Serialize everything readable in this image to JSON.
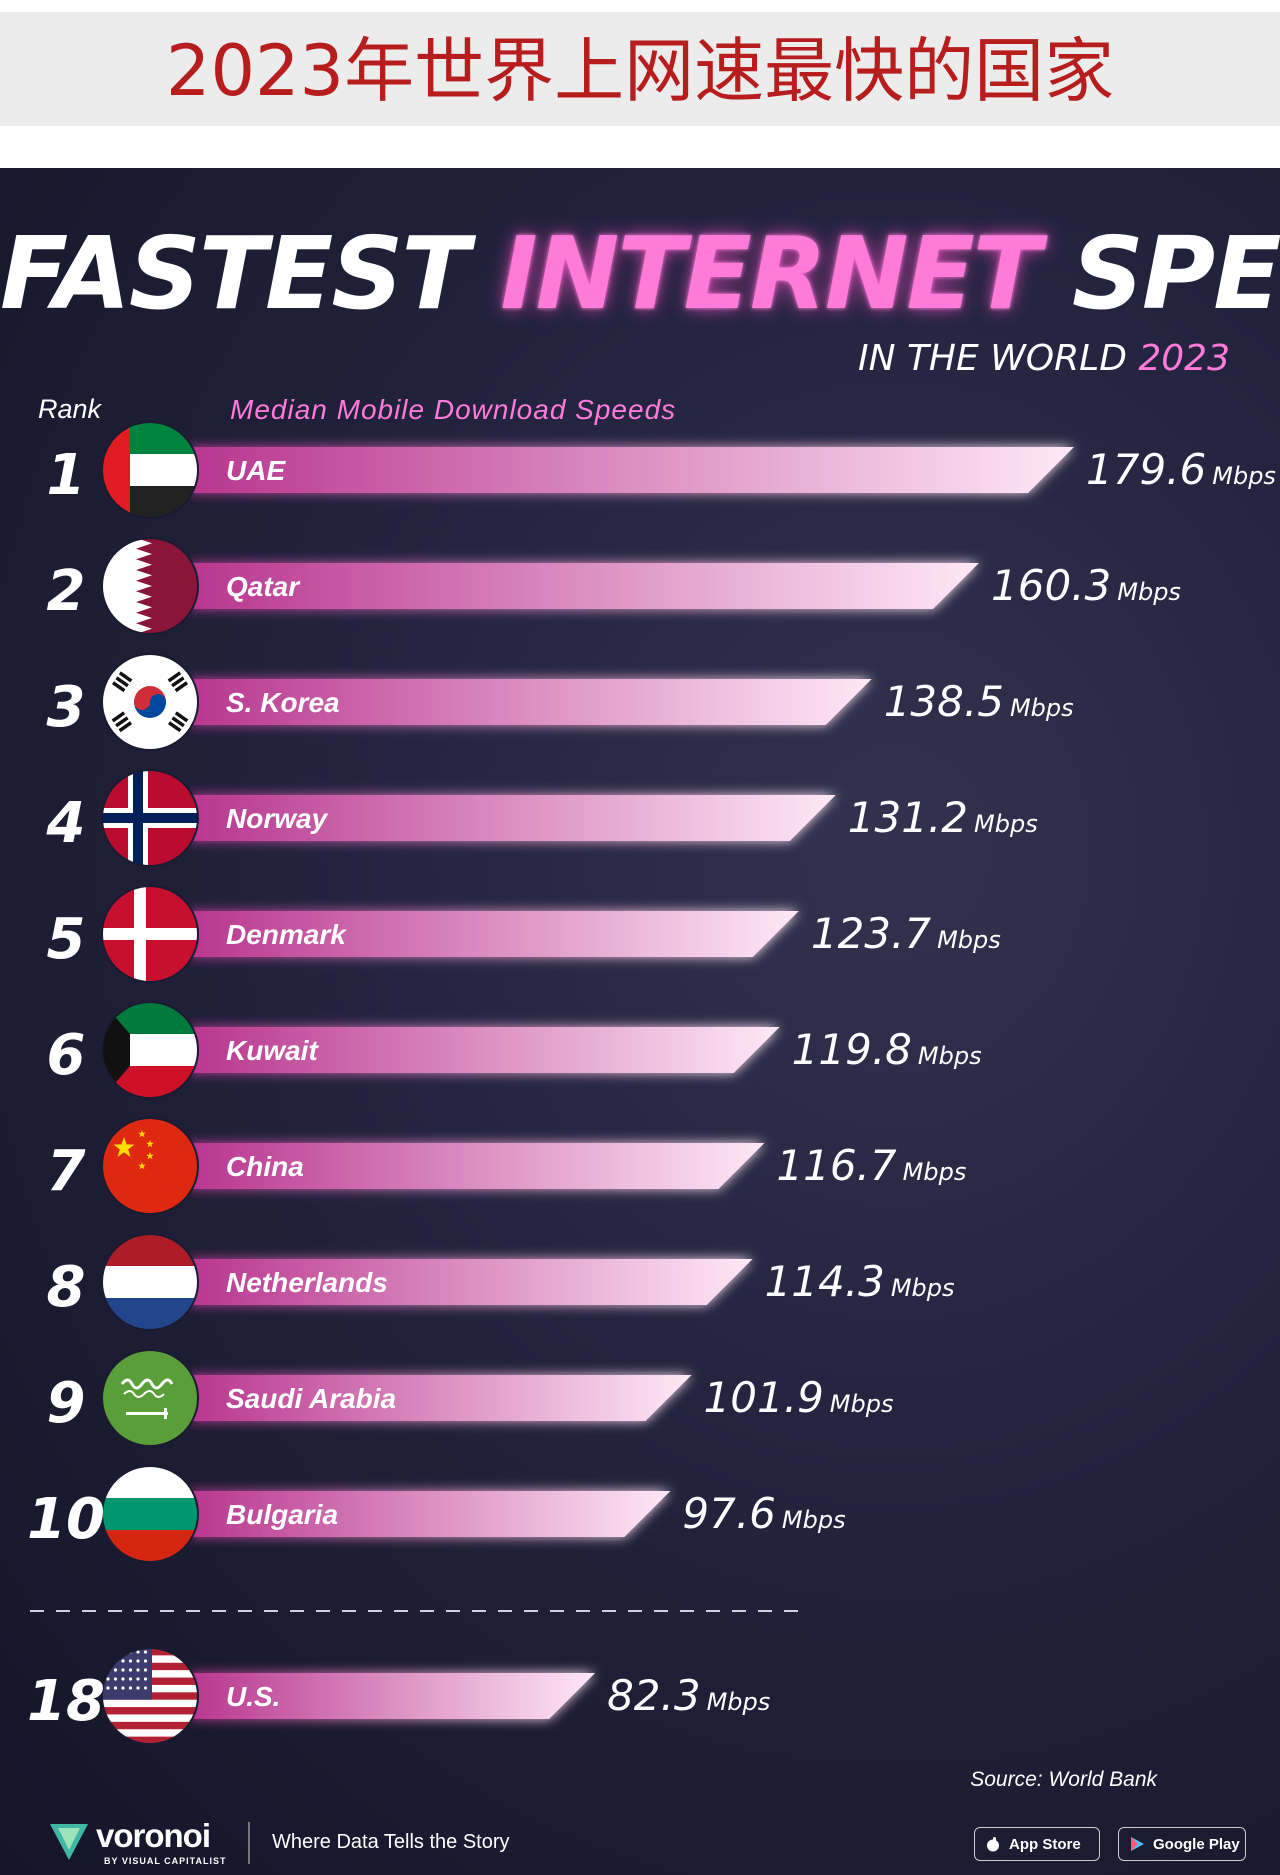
{
  "banner": {
    "title": "2023年世界上网速最快的国家"
  },
  "header": {
    "title_words": [
      "FASTEST",
      "INTERNET",
      "SPEEDS"
    ],
    "subtitle": "IN THE WORLD",
    "subtitle_year": "2023"
  },
  "column_headers": {
    "rank": "Rank",
    "metric": "Median Mobile Download Speeds"
  },
  "colors": {
    "accent": "#ff7ad9",
    "bar_start": "#b8368f",
    "bar_end": "#ffe8f6",
    "background": "#1f1f38"
  },
  "chart_data": {
    "type": "bar",
    "orientation": "horizontal",
    "title": "FASTEST INTERNET SPEEDS",
    "subtitle": "IN THE WORLD 2023",
    "ylabel": "Median Mobile Download Speeds",
    "unit": "Mbps",
    "categories": [
      "UAE",
      "Qatar",
      "S. Korea",
      "Norway",
      "Denmark",
      "Kuwait",
      "China",
      "Netherlands",
      "Saudi Arabia",
      "Bulgaria",
      "U.S."
    ],
    "ranks": [
      "1",
      "2",
      "3",
      "4",
      "5",
      "6",
      "7",
      "8",
      "9",
      "10",
      "18"
    ],
    "values": [
      179.6,
      160.3,
      138.5,
      131.2,
      123.7,
      119.8,
      116.7,
      114.3,
      101.9,
      97.6,
      82.3
    ],
    "value_labels": [
      "179.6",
      "160.3",
      "138.5",
      "131.2",
      "123.7",
      "119.8",
      "116.7",
      "114.3",
      "101.9",
      "97.6",
      "82.3"
    ],
    "flags": [
      "uae-flag-icon",
      "qatar-flag-icon",
      "south-korea-flag-icon",
      "norway-flag-icon",
      "denmark-flag-icon",
      "kuwait-flag-icon",
      "china-flag-icon",
      "netherlands-flag-icon",
      "saudi-arabia-flag-icon",
      "bulgaria-flag-icon",
      "usa-flag-icon"
    ]
  },
  "source": "Source: World Bank",
  "footer": {
    "brand": "voronoi",
    "brand_sub": "BY VISUAL CAPITALIST",
    "tagline": "Where Data Tells the Story",
    "app_store": "App Store",
    "google_play": "Google Play"
  }
}
